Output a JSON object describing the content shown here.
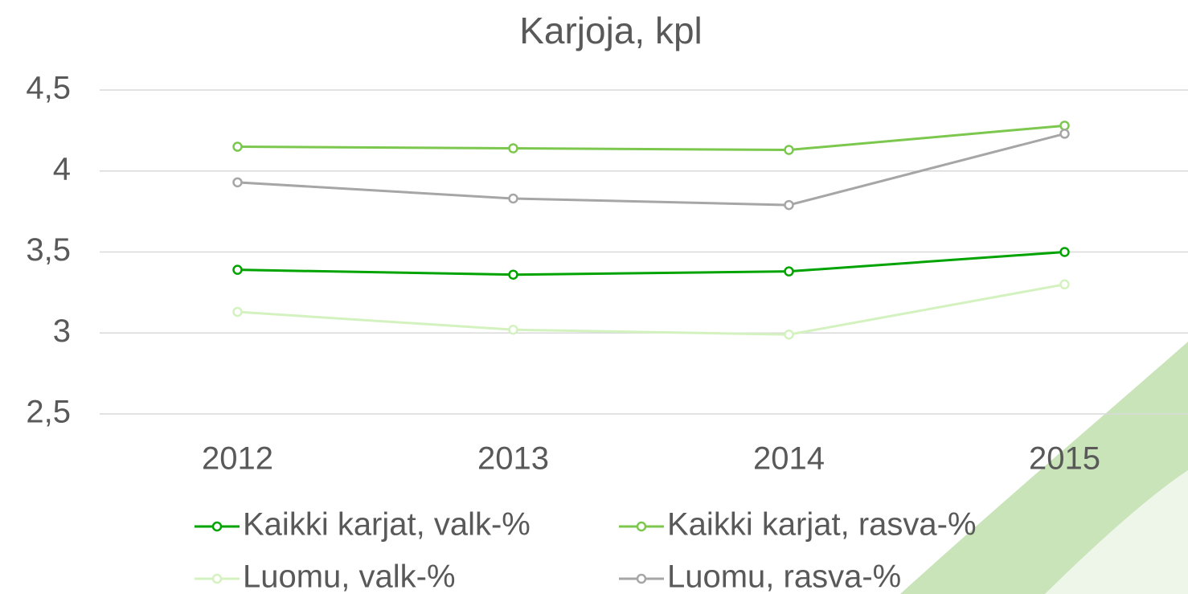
{
  "chart_data": {
    "type": "line",
    "title": "Karjoja, kpl",
    "categories": [
      "2012",
      "2013",
      "2014",
      "2015"
    ],
    "series": [
      {
        "name": "Kaikki karjat, valk-%",
        "color": "#00a300",
        "values": [
          3.39,
          3.36,
          3.38,
          3.5
        ]
      },
      {
        "name": "Kaikki karjat, rasva-%",
        "color": "#7cc84e",
        "values": [
          4.15,
          4.14,
          4.13,
          4.28
        ]
      },
      {
        "name": "Luomu, valk-%",
        "color": "#d4f2bf",
        "values": [
          3.13,
          3.02,
          2.99,
          3.3
        ]
      },
      {
        "name": "Luomu, rasva-%",
        "color": "#a6a6a6",
        "values": [
          3.93,
          3.83,
          3.79,
          4.23
        ]
      }
    ],
    "ylim": [
      2.5,
      4.5
    ],
    "yticks": [
      {
        "value": 2.5,
        "label": "2,5"
      },
      3,
      {
        "value": 3.5,
        "label": "3,5"
      },
      4,
      {
        "value": 4.5,
        "label": "4,5"
      }
    ],
    "grid": true,
    "legend": "bottom"
  }
}
